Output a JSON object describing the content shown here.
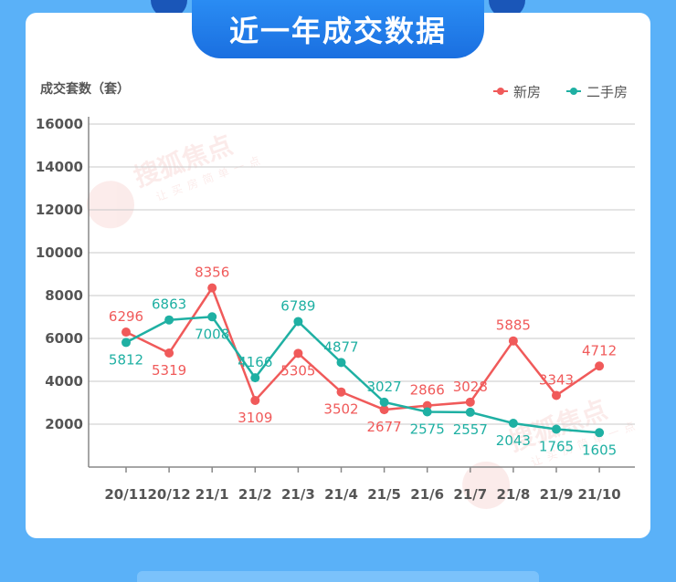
{
  "header": {
    "title": "近一年成交数据"
  },
  "chart_data": {
    "type": "line",
    "title": "近一年成交数据",
    "ylabel": "成交套数（套）",
    "categories": [
      "20/11",
      "20/12",
      "21/1",
      "21/2",
      "21/3",
      "21/4",
      "21/5",
      "21/6",
      "21/7",
      "21/8",
      "21/9",
      "21/10"
    ],
    "series": [
      {
        "name": "新房",
        "color": "#f05a5a",
        "values": [
          6296,
          5319,
          8356,
          3109,
          5305,
          3502,
          2677,
          2866,
          3028,
          5885,
          3343,
          4712
        ]
      },
      {
        "name": "二手房",
        "color": "#1fb0a3",
        "values": [
          5812,
          6863,
          7008,
          4166,
          6789,
          4877,
          3027,
          2575,
          2557,
          2043,
          1765,
          1605
        ]
      }
    ],
    "yticks": [
      2000,
      4000,
      6000,
      8000,
      10000,
      12000,
      14000,
      16000
    ],
    "ylim": [
      0,
      16000
    ],
    "grid": true,
    "legend": "top-right"
  },
  "watermark": {
    "brand": "搜狐焦点",
    "slogan": "让买房简单一点"
  }
}
